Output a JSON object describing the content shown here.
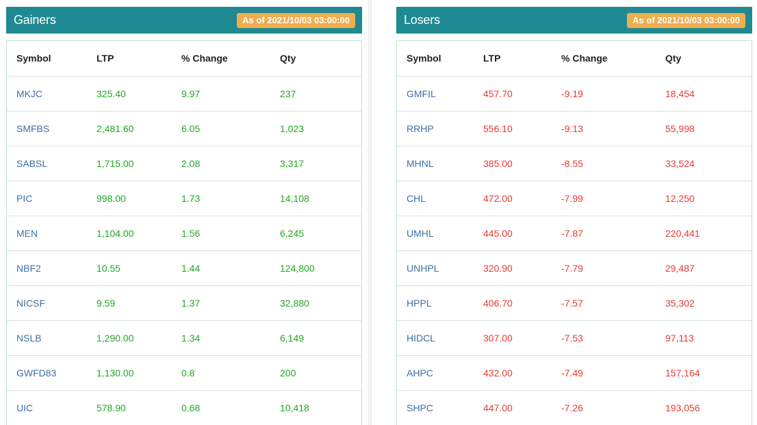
{
  "gainers": {
    "title": "Gainers",
    "as_of": "As of 2021/10/03 03:00:00",
    "columns": [
      "Symbol",
      "LTP",
      "% Change",
      "Qty"
    ],
    "rows": [
      {
        "symbol": "MKJC",
        "ltp": "325.40",
        "change": "9.97",
        "qty": "237"
      },
      {
        "symbol": "SMFBS",
        "ltp": "2,481.60",
        "change": "6.05",
        "qty": "1,023"
      },
      {
        "symbol": "SABSL",
        "ltp": "1,715.00",
        "change": "2.08",
        "qty": "3,317"
      },
      {
        "symbol": "PIC",
        "ltp": "998.00",
        "change": "1.73",
        "qty": "14,108"
      },
      {
        "symbol": "MEN",
        "ltp": "1,104.00",
        "change": "1.56",
        "qty": "6,245"
      },
      {
        "symbol": "NBF2",
        "ltp": "10.55",
        "change": "1.44",
        "qty": "124,800"
      },
      {
        "symbol": "NICSF",
        "ltp": "9.59",
        "change": "1.37",
        "qty": "32,880"
      },
      {
        "symbol": "NSLB",
        "ltp": "1,290.00",
        "change": "1.34",
        "qty": "6,149"
      },
      {
        "symbol": "GWFD83",
        "ltp": "1,130.00",
        "change": "0.8",
        "qty": "200"
      },
      {
        "symbol": "UIC",
        "ltp": "578.90",
        "change": "0.68",
        "qty": "10,418"
      }
    ]
  },
  "losers": {
    "title": "Losers",
    "as_of": "As of 2021/10/03 03:00:00",
    "columns": [
      "Symbol",
      "LTP",
      "% Change",
      "Qty"
    ],
    "rows": [
      {
        "symbol": "GMFIL",
        "ltp": "457.70",
        "change": "-9.19",
        "qty": "18,454"
      },
      {
        "symbol": "RRHP",
        "ltp": "556.10",
        "change": "-9.13",
        "qty": "55,998"
      },
      {
        "symbol": "MHNL",
        "ltp": "385.00",
        "change": "-8.55",
        "qty": "33,524"
      },
      {
        "symbol": "CHL",
        "ltp": "472.00",
        "change": "-7.99",
        "qty": "12,250"
      },
      {
        "symbol": "UMHL",
        "ltp": "445.00",
        "change": "-7.87",
        "qty": "220,441"
      },
      {
        "symbol": "UNHPL",
        "ltp": "320.90",
        "change": "-7.79",
        "qty": "29,487"
      },
      {
        "symbol": "HPPL",
        "ltp": "406.70",
        "change": "-7.57",
        "qty": "35,302"
      },
      {
        "symbol": "HIDCL",
        "ltp": "307.00",
        "change": "-7.53",
        "qty": "97,113"
      },
      {
        "symbol": "AHPC",
        "ltp": "432.00",
        "change": "-7.49",
        "qty": "157,164"
      },
      {
        "symbol": "SHPC",
        "ltp": "447.00",
        "change": "-7.26",
        "qty": "193,056"
      }
    ]
  },
  "colors": {
    "header_bg": "#1f8a92",
    "badge_bg": "#f0ad4e",
    "symbol_text": "#3d6fa5",
    "gain_text": "#1fa81f",
    "loss_text": "#e83a32"
  }
}
